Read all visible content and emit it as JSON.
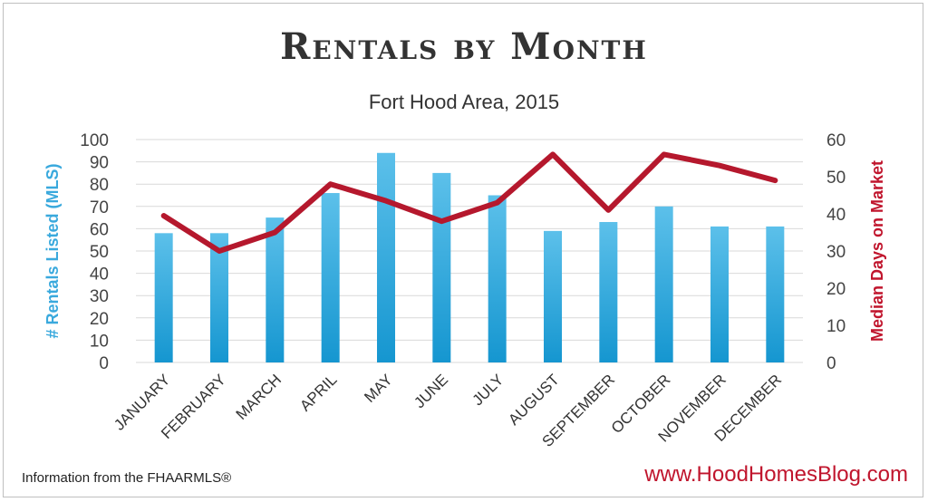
{
  "chart_data": {
    "type": "bar",
    "title": "Rentals by Month",
    "subtitle": "Fort Hood Area, 2015",
    "categories": [
      "JANUARY",
      "FEBRUARY",
      "MARCH",
      "APRIL",
      "MAY",
      "JUNE",
      "JULY",
      "AUGUST",
      "SEPTEMBER",
      "OCTOBER",
      "NOVEMBER",
      "DECEMBER"
    ],
    "series": [
      {
        "type": "bar",
        "axis": "left",
        "values": [
          58,
          58,
          65,
          76,
          94,
          85,
          75,
          59,
          63,
          70,
          61,
          61
        ]
      },
      {
        "type": "line",
        "axis": "right",
        "values": [
          39.5,
          30,
          35,
          48,
          43.5,
          38,
          43,
          56,
          41,
          56,
          53,
          49
        ]
      }
    ],
    "ylabel": "# Rentals Listed (MLS)",
    "y2label": "Median Days on Market",
    "ylim": [
      0,
      100
    ],
    "y2lim": [
      0,
      60
    ],
    "yticks": [
      "100",
      "90",
      "80",
      "70",
      "60",
      "50",
      "40",
      "30",
      "20",
      "10",
      "0"
    ],
    "y2ticks": [
      "60",
      "50",
      "40",
      "30",
      "20",
      "10",
      "0"
    ],
    "grid": true,
    "colors": {
      "bar": "#29a3db",
      "line": "#b5182d"
    }
  },
  "footer": {
    "source": "Information from the FHAARMLS®",
    "website": "www.HoodHomesBlog.com"
  }
}
